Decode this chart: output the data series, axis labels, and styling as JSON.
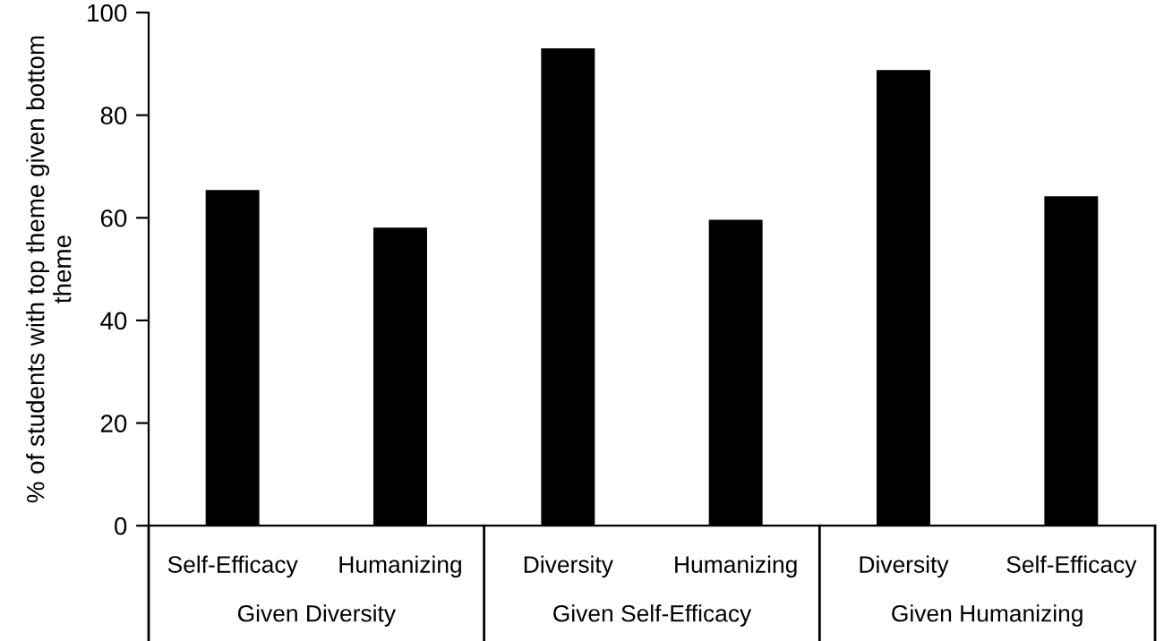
{
  "chart_data": {
    "type": "bar",
    "ylabel": "% of students with top theme given bottom theme",
    "categories": [
      "Self-Efficacy",
      "Humanizing",
      "Diversity",
      "Humanizing",
      "Diversity",
      "Self-Efficacy"
    ],
    "values": [
      65.4,
      58.1,
      93.0,
      59.6,
      88.8,
      64.2
    ],
    "color": "#000000",
    "ylim": [
      0,
      100
    ],
    "yticks": [
      0,
      20,
      40,
      60,
      80,
      100
    ],
    "grid": false,
    "legend": false,
    "annotations": [
      "Given Diversity",
      "Given Self-Efficacy",
      "Given Humanizing"
    ]
  }
}
